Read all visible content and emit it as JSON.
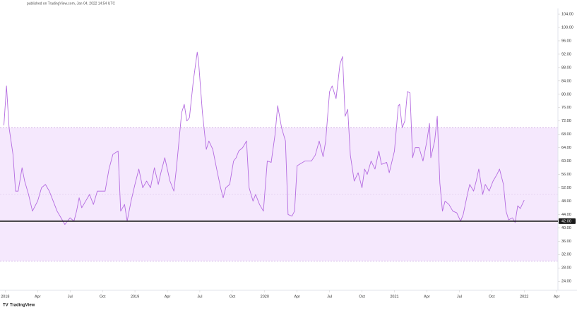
{
  "chart_data": {
    "type": "line",
    "header": "published on TradingView.com, Jan 04, 2022 14:54 UTC",
    "brand": "TradingView",
    "series": [
      {
        "color": "#b46be0",
        "x": [
          2017.99,
          2018.01,
          2018.03,
          2018.06,
          2018.08,
          2018.1,
          2018.13,
          2018.15,
          2018.18,
          2018.21,
          2018.25,
          2018.28,
          2018.31,
          2018.34,
          2018.37,
          2018.4,
          2018.43,
          2018.46,
          2018.5,
          2018.53,
          2018.55,
          2018.57,
          2018.59,
          2018.62,
          2018.65,
          2018.68,
          2018.71,
          2018.74,
          2018.77,
          2018.8,
          2018.83,
          2018.87,
          2018.89,
          2018.92,
          2018.94,
          2018.97,
          2019.0,
          2019.03,
          2019.06,
          2019.09,
          2019.12,
          2019.15,
          2019.18,
          2019.2,
          2019.23,
          2019.27,
          2019.3,
          2019.32,
          2019.36,
          2019.38,
          2019.4,
          2019.42,
          2019.45,
          2019.48,
          2019.49,
          2019.52,
          2019.55,
          2019.57,
          2019.6,
          2019.63,
          2019.66,
          2019.68,
          2019.7,
          2019.73,
          2019.76,
          2019.78,
          2019.8,
          2019.83,
          2019.86,
          2019.88,
          2019.91,
          2019.93,
          2019.96,
          2019.99,
          2020.02,
          2020.05,
          2020.08,
          2020.1,
          2020.13,
          2020.16,
          2020.18,
          2020.21,
          2020.23,
          2020.25,
          2020.28,
          2020.31,
          2020.36,
          2020.39,
          2020.42,
          2020.45,
          2020.47,
          2020.5,
          2020.52,
          2020.55,
          2020.58,
          2020.6,
          2020.62,
          2020.64,
          2020.66,
          2020.69,
          2020.72,
          2020.75,
          2020.77,
          2020.79,
          2020.82,
          2020.85,
          2020.88,
          2020.9,
          2020.94,
          2020.96,
          2021.0,
          2021.03,
          2021.04,
          2021.06,
          2021.08,
          2021.1,
          2021.12,
          2021.14,
          2021.16,
          2021.19,
          2021.22,
          2021.25,
          2021.27,
          2021.28,
          2021.31,
          2021.33,
          2021.35,
          2021.37,
          2021.39,
          2021.42,
          2021.45,
          2021.48,
          2021.51,
          2021.53,
          2021.56,
          2021.58,
          2021.61,
          2021.63,
          2021.65,
          2021.68,
          2021.7,
          2021.73,
          2021.76,
          2021.79,
          2021.81,
          2021.84,
          2021.86,
          2021.88,
          2021.91,
          2021.93,
          2021.95,
          2021.97,
          2022.0
        ],
        "values": [
          70.7,
          82.5,
          70,
          62,
          51,
          51,
          58,
          54,
          50,
          45,
          48,
          52,
          53,
          51,
          48,
          45,
          43,
          41,
          43,
          42,
          45,
          49,
          46,
          48,
          50,
          47,
          51,
          51,
          51,
          57.6,
          62,
          63,
          45,
          47,
          42,
          48,
          53,
          57.6,
          52,
          54,
          52,
          58,
          53,
          56.5,
          61,
          54,
          51,
          58,
          74.5,
          77,
          72,
          73,
          84,
          92.6,
          90,
          74.5,
          63.5,
          66,
          63.5,
          57.6,
          52,
          49,
          52,
          53,
          60,
          61,
          63,
          64,
          66,
          52,
          48,
          50,
          47,
          45,
          60,
          59.6,
          68,
          76.6,
          70,
          66,
          44,
          43.5,
          45,
          58.6,
          59.3,
          60,
          60,
          61.8,
          66,
          61.3,
          66,
          80.8,
          82.5,
          78.7,
          89,
          91.3,
          73.4,
          75.5,
          61.8,
          54,
          56.5,
          52,
          57.6,
          56,
          60,
          57.6,
          63,
          59,
          59.6,
          56.5,
          63,
          76.6,
          77,
          70,
          72,
          80.8,
          80.4,
          61,
          64,
          64,
          60,
          66,
          71.3,
          61,
          66,
          73.4,
          53.4,
          45,
          48,
          47,
          45,
          44.5,
          42,
          44,
          49.6,
          53,
          51,
          54,
          57.6,
          50,
          53,
          51,
          54,
          56,
          57.6,
          53,
          45,
          42.4,
          43,
          41.6,
          46.6,
          45.8,
          48.3
        ]
      }
    ],
    "xlim": [
      2017.96,
      2022.26
    ],
    "xticks": [
      {
        "value": 2018,
        "label": "2018"
      },
      {
        "value": 2018.25,
        "label": "Apr"
      },
      {
        "value": 2018.5,
        "label": "Jul"
      },
      {
        "value": 2018.75,
        "label": "Oct"
      },
      {
        "value": 2019,
        "label": "2019"
      },
      {
        "value": 2019.25,
        "label": "Apr"
      },
      {
        "value": 2019.5,
        "label": "Jul"
      },
      {
        "value": 2019.75,
        "label": "Oct"
      },
      {
        "value": 2020,
        "label": "2020"
      },
      {
        "value": 2020.25,
        "label": "Apr"
      },
      {
        "value": 2020.5,
        "label": "Jul"
      },
      {
        "value": 2020.75,
        "label": "Oct"
      },
      {
        "value": 2021,
        "label": "2021"
      },
      {
        "value": 2021.25,
        "label": "Apr"
      },
      {
        "value": 2021.5,
        "label": "Jul"
      },
      {
        "value": 2021.75,
        "label": "Oct"
      },
      {
        "value": 2022,
        "label": "2022"
      },
      {
        "value": 2022.25,
        "label": "Apr"
      }
    ],
    "ylim": [
      21.3,
      105.7
    ],
    "yticks": [
      {
        "value": 104,
        "label": "104.00"
      },
      {
        "value": 100,
        "label": "100.00"
      },
      {
        "value": 96,
        "label": "96.00"
      },
      {
        "value": 92,
        "label": "92.00"
      },
      {
        "value": 88,
        "label": "88.00"
      },
      {
        "value": 84,
        "label": "84.00"
      },
      {
        "value": 80,
        "label": "80.00"
      },
      {
        "value": 76,
        "label": "76.00"
      },
      {
        "value": 72,
        "label": "72.00"
      },
      {
        "value": 68,
        "label": "68.00"
      },
      {
        "value": 64,
        "label": "64.00"
      },
      {
        "value": 60,
        "label": "60.00"
      },
      {
        "value": 56,
        "label": "56.00"
      },
      {
        "value": 52,
        "label": "52.00"
      },
      {
        "value": 48,
        "label": "48.00"
      },
      {
        "value": 44,
        "label": "44.00"
      },
      {
        "value": 40,
        "label": "40.00"
      },
      {
        "value": 36,
        "label": "36.00"
      },
      {
        "value": 32,
        "label": "32.00"
      },
      {
        "value": 28,
        "label": "28.00"
      },
      {
        "value": 24,
        "label": "24.00"
      }
    ],
    "band": {
      "upper": 70,
      "lower": 30,
      "middle": 50,
      "color": "#f5e8fd"
    },
    "hline": {
      "value": 42,
      "label": "42.00",
      "color": "#1a1a1a"
    }
  }
}
